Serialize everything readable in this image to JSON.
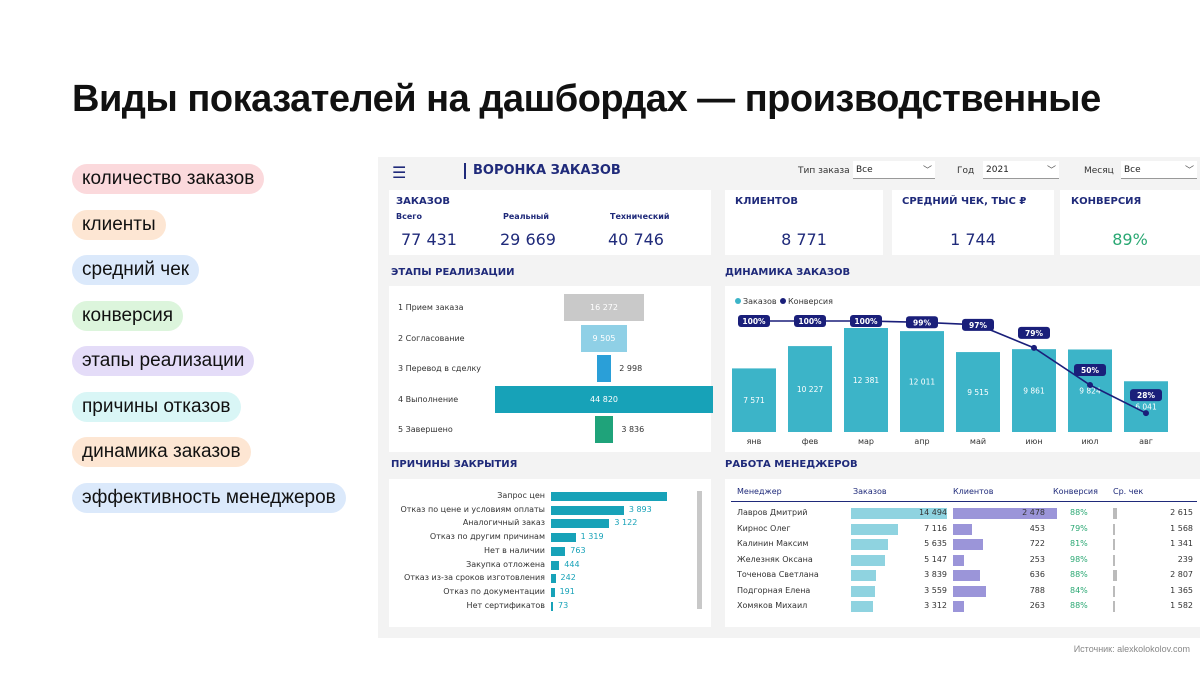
{
  "slide": {
    "title": "Виды показателей на дашбордах — производственные",
    "source": "Источник: alexkolokolov.com",
    "pills": [
      {
        "label": "количество заказов",
        "color": "#fbd9dc"
      },
      {
        "label": "клиенты",
        "color": "#fde6d3"
      },
      {
        "label": "средний чек",
        "color": "#dbe9fb"
      },
      {
        "label": "конверсия",
        "color": "#dcf5dc"
      },
      {
        "label": "этапы реализации",
        "color": "#e4dcf8"
      },
      {
        "label": "причины отказов",
        "color": "#d9f6f6"
      },
      {
        "label": "динамика заказов",
        "color": "#fde6d3"
      },
      {
        "label": "эффективность менеджеров",
        "color": "#dbe9fb"
      }
    ]
  },
  "dashboard": {
    "menu_icon": "hamburger-icon",
    "title": "ВОРОНКА ЗАКАЗОВ",
    "filters": [
      {
        "label": "Тип заказа",
        "value": "Все"
      },
      {
        "label": "Год",
        "value": "2021"
      },
      {
        "label": "Месяц",
        "value": "Все"
      }
    ],
    "kpi_orders": {
      "title": "ЗАКАЗОВ",
      "items": [
        {
          "label": "Всего",
          "value": "77 431"
        },
        {
          "label": "Реальный",
          "value": "29 669"
        },
        {
          "label": "Технический",
          "value": "40 746"
        }
      ]
    },
    "kpi_clients": {
      "title": "КЛИЕНТОВ",
      "value": "8 771"
    },
    "kpi_check": {
      "title": "СРЕДНИЙ ЧЕК, ТЫС ₽",
      "value": "1 744"
    },
    "kpi_conv": {
      "title": "КОНВЕРСИЯ",
      "value": "89%",
      "color": "#2aa873"
    },
    "stages": {
      "title": "ЭТАПЫ РЕАЛИЗАЦИИ",
      "rows": [
        {
          "label": "1 Прием заказа",
          "value": 16272,
          "text": "16 272",
          "color": "#c9c9c9"
        },
        {
          "label": "2 Согласование",
          "value": 9505,
          "text": "9 505",
          "color": "#8fd0e6"
        },
        {
          "label": "3 Перевод в сделку",
          "value": 2998,
          "text": "2 998",
          "color": "#2a9fd8"
        },
        {
          "label": "4 Выполнение",
          "value": 44820,
          "text": "44 820",
          "color": "#17a2b8"
        },
        {
          "label": "5 Завершено",
          "value": 3836,
          "text": "3 836",
          "color": "#1fa37a"
        }
      ]
    },
    "reasons": {
      "title": "ПРИЧИНЫ ЗАКРЫТИЯ",
      "rows": [
        {
          "label": "Запрос цен",
          "value": 6200,
          "text": ""
        },
        {
          "label": "Отказ по цене и условиям оплаты",
          "value": 3893,
          "text": "3 893"
        },
        {
          "label": "Аналогичный заказ",
          "value": 3122,
          "text": "3 122"
        },
        {
          "label": "Отказ по другим причинам",
          "value": 1319,
          "text": "1 319"
        },
        {
          "label": "Нет в наличии",
          "value": 763,
          "text": "763"
        },
        {
          "label": "Закупка отложена",
          "value": 444,
          "text": "444"
        },
        {
          "label": "Отказ из-за сроков изготовления",
          "value": 242,
          "text": "242"
        },
        {
          "label": "Отказ по документации",
          "value": 191,
          "text": "191"
        },
        {
          "label": "Нет сертификатов",
          "value": 73,
          "text": "73"
        }
      ]
    },
    "managers": {
      "title": "РАБОТА МЕНЕДЖЕРОВ",
      "headers": [
        "Менеджер",
        "Заказов",
        "Клиентов",
        "Конверсия",
        "Ср. чек"
      ],
      "rows": [
        {
          "name": "Лавров Дмитрий",
          "orders": 14494,
          "orders_text": "14 494",
          "clients": 2478,
          "clients_text": "2 478",
          "conv": "88%",
          "check": 2615,
          "check_text": "2 615"
        },
        {
          "name": "Кирнос Олег",
          "orders": 7116,
          "orders_text": "7 116",
          "clients": 453,
          "clients_text": "453",
          "conv": "79%",
          "check": 1568,
          "check_text": "1 568"
        },
        {
          "name": "Калинин Максим",
          "orders": 5635,
          "orders_text": "5 635",
          "clients": 722,
          "clients_text": "722",
          "conv": "81%",
          "check": 1341,
          "check_text": "1 341"
        },
        {
          "name": "Железняк Оксана",
          "orders": 5147,
          "orders_text": "5 147",
          "clients": 253,
          "clients_text": "253",
          "conv": "98%",
          "check": 239,
          "check_text": "239"
        },
        {
          "name": "Точенова Светлана",
          "orders": 3839,
          "orders_text": "3 839",
          "clients": 636,
          "clients_text": "636",
          "conv": "88%",
          "check": 2807,
          "check_text": "2 807"
        },
        {
          "name": "Подгорная Елена",
          "orders": 3559,
          "orders_text": "3 559",
          "clients": 788,
          "clients_text": "788",
          "conv": "84%",
          "check": 1365,
          "check_text": "1 365"
        },
        {
          "name": "Хомяков Михаил",
          "orders": 3312,
          "orders_text": "3 312",
          "clients": 263,
          "clients_text": "263",
          "conv": "88%",
          "check": 1582,
          "check_text": "1 582"
        }
      ]
    }
  },
  "chart_data": [
    {
      "type": "bar",
      "title": "ДИНАМИКА ЗАКАЗОВ",
      "legend": [
        "Заказов",
        "Конверсия"
      ],
      "legend_position": "top-left",
      "categories": [
        "янв",
        "фев",
        "мар",
        "апр",
        "май",
        "июн",
        "июл",
        "авг"
      ],
      "series": [
        {
          "name": "Заказов",
          "type": "bar",
          "values": [
            7571,
            10227,
            12381,
            12011,
            9515,
            9861,
            9824,
            6041
          ],
          "labels": [
            "7 571",
            "10 227",
            "12 381",
            "12 011",
            "9 515",
            "9 861",
            "9 824",
            "6 041"
          ],
          "color": "#3cb4c8"
        },
        {
          "name": "Конверсия",
          "type": "line",
          "values": [
            100,
            100,
            100,
            99,
            97,
            79,
            50,
            28
          ],
          "labels": [
            "100%",
            "100%",
            "100%",
            "99%",
            "97%",
            "79%",
            "50%",
            "28%"
          ],
          "color": "#1a1f7a"
        }
      ],
      "grid": false
    }
  ]
}
